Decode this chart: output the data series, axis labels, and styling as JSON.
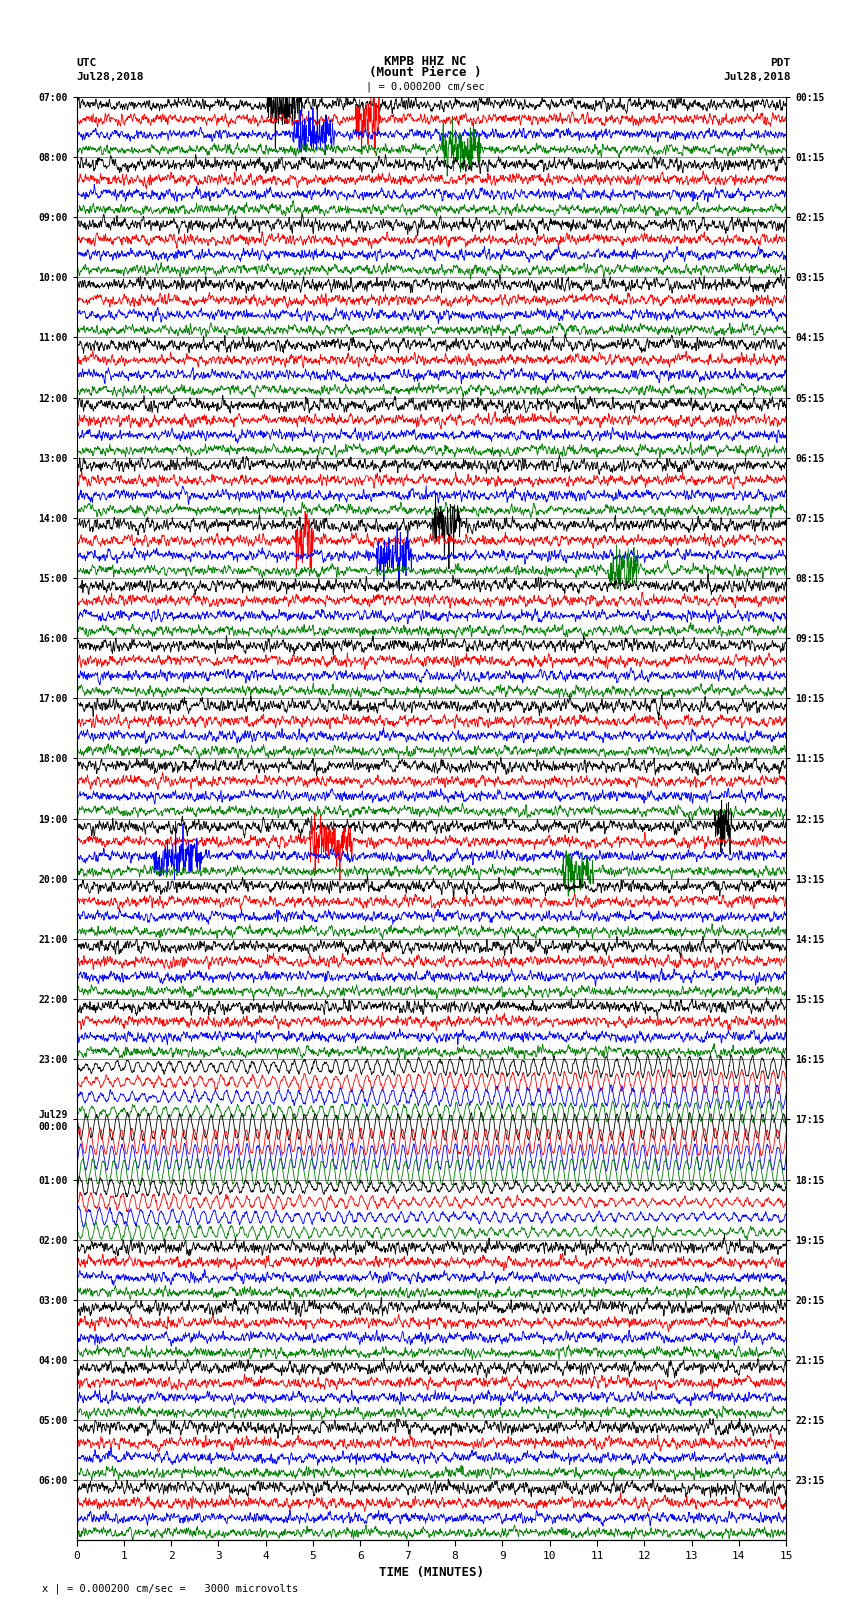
{
  "title_line1": "KMPB HHZ NC",
  "title_line2": "(Mount Pierce )",
  "title_line3": "| = 0.000200 cm/sec",
  "label_utc": "UTC",
  "label_pdt": "PDT",
  "label_date_left": "Jul28,2018",
  "label_date_right": "Jul28,2018",
  "xlabel": "TIME (MINUTES)",
  "footer": "x | = 0.000200 cm/sec =   3000 microvolts",
  "left_times": [
    "07:00",
    "08:00",
    "09:00",
    "10:00",
    "11:00",
    "12:00",
    "13:00",
    "14:00",
    "15:00",
    "16:00",
    "17:00",
    "18:00",
    "19:00",
    "20:00",
    "21:00",
    "22:00",
    "23:00",
    "Jul29\n00:00",
    "01:00",
    "02:00",
    "03:00",
    "04:00",
    "05:00",
    "06:00"
  ],
  "right_times": [
    "00:15",
    "01:15",
    "02:15",
    "03:15",
    "04:15",
    "05:15",
    "06:15",
    "07:15",
    "08:15",
    "09:15",
    "10:15",
    "11:15",
    "12:15",
    "13:15",
    "14:15",
    "15:15",
    "16:15",
    "17:15",
    "18:15",
    "19:15",
    "20:15",
    "21:15",
    "22:15",
    "23:15"
  ],
  "n_rows": 24,
  "traces_per_row": 4,
  "colors": [
    "black",
    "red",
    "blue",
    "green"
  ],
  "bg_color": "white",
  "plot_bg": "white",
  "xmin": 0,
  "xmax": 15,
  "xticks": [
    0,
    1,
    2,
    3,
    4,
    5,
    6,
    7,
    8,
    9,
    10,
    11,
    12,
    13,
    14,
    15
  ],
  "figsize": [
    8.5,
    16.13
  ],
  "dpi": 100
}
